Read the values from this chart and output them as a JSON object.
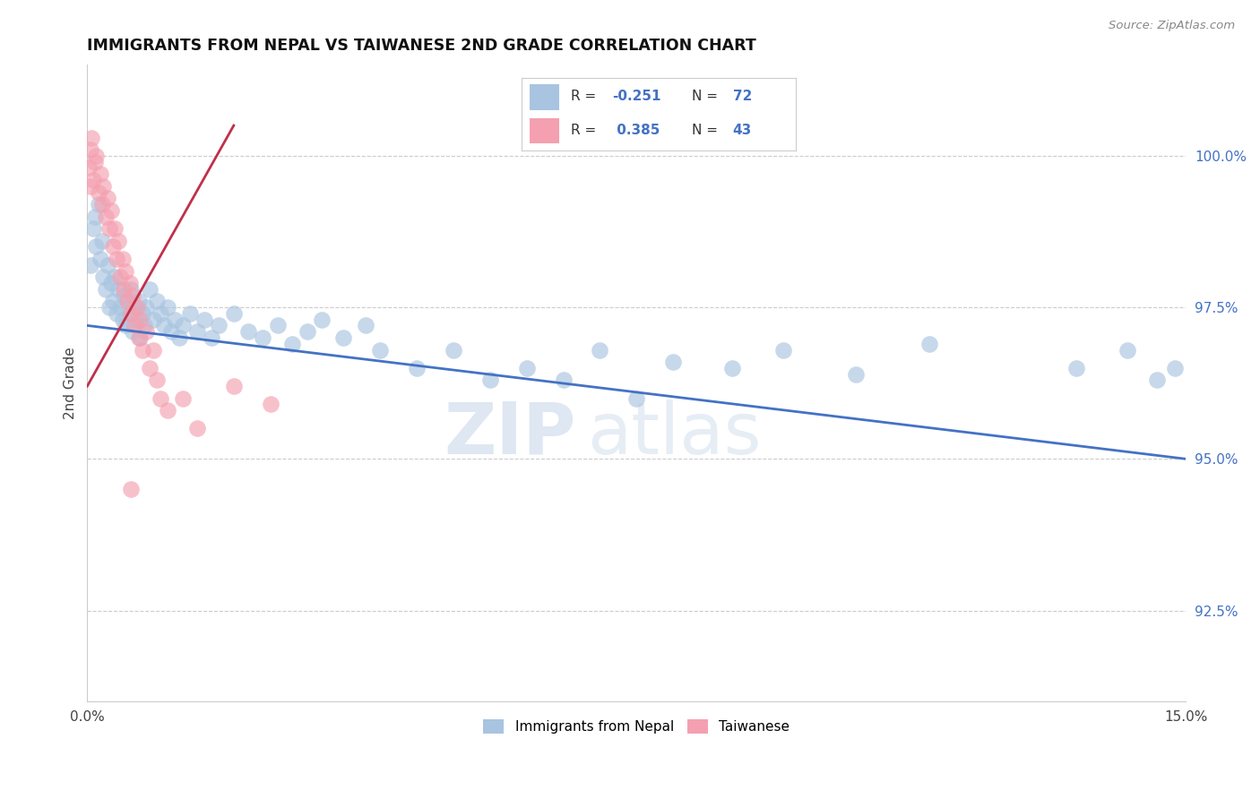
{
  "title": "IMMIGRANTS FROM NEPAL VS TAIWANESE 2ND GRADE CORRELATION CHART",
  "source_text": "Source: ZipAtlas.com",
  "ylabel": "2nd Grade",
  "xlim": [
    0.0,
    15.0
  ],
  "ylim": [
    91.0,
    101.5
  ],
  "yticks": [
    92.5,
    95.0,
    97.5,
    100.0
  ],
  "ytick_labels": [
    "92.5%",
    "95.0%",
    "97.5%",
    "100.0%"
  ],
  "xticks": [
    0.0,
    3.0,
    6.0,
    9.0,
    12.0,
    15.0
  ],
  "xtick_labels": [
    "0.0%",
    "",
    "",
    "",
    "",
    "15.0%"
  ],
  "blue_color": "#a8c4e0",
  "pink_color": "#f4a0b0",
  "blue_line_color": "#4472c4",
  "pink_line_color": "#c0304a",
  "watermark_zip": "ZIP",
  "watermark_atlas": "atlas",
  "blue_x": [
    0.05,
    0.08,
    0.1,
    0.12,
    0.15,
    0.18,
    0.2,
    0.22,
    0.25,
    0.28,
    0.3,
    0.32,
    0.35,
    0.38,
    0.4,
    0.42,
    0.45,
    0.48,
    0.5,
    0.52,
    0.55,
    0.58,
    0.6,
    0.62,
    0.65,
    0.68,
    0.7,
    0.72,
    0.75,
    0.78,
    0.8,
    0.85,
    0.9,
    0.95,
    1.0,
    1.05,
    1.1,
    1.15,
    1.2,
    1.25,
    1.3,
    1.4,
    1.5,
    1.6,
    1.7,
    1.8,
    2.0,
    2.2,
    2.4,
    2.6,
    2.8,
    3.0,
    3.2,
    3.5,
    3.8,
    4.0,
    4.5,
    5.0,
    5.5,
    6.0,
    6.5,
    7.0,
    7.5,
    8.0,
    8.8,
    9.5,
    10.5,
    11.5,
    13.5,
    14.2,
    14.6,
    14.85
  ],
  "blue_y": [
    98.2,
    98.8,
    99.0,
    98.5,
    99.2,
    98.3,
    98.6,
    98.0,
    97.8,
    98.2,
    97.5,
    97.9,
    97.6,
    98.0,
    97.4,
    97.8,
    97.5,
    97.3,
    97.7,
    97.2,
    97.6,
    97.4,
    97.8,
    97.1,
    97.5,
    97.3,
    97.6,
    97.0,
    97.4,
    97.2,
    97.5,
    97.8,
    97.3,
    97.6,
    97.4,
    97.2,
    97.5,
    97.1,
    97.3,
    97.0,
    97.2,
    97.4,
    97.1,
    97.3,
    97.0,
    97.2,
    97.4,
    97.1,
    97.0,
    97.2,
    96.9,
    97.1,
    97.3,
    97.0,
    97.2,
    96.8,
    96.5,
    96.8,
    96.3,
    96.5,
    96.3,
    96.8,
    96.0,
    96.6,
    96.5,
    96.8,
    96.4,
    96.9,
    96.5,
    96.8,
    96.3,
    96.5
  ],
  "pink_x": [
    0.02,
    0.04,
    0.06,
    0.08,
    0.1,
    0.12,
    0.15,
    0.18,
    0.2,
    0.22,
    0.25,
    0.28,
    0.3,
    0.32,
    0.35,
    0.38,
    0.4,
    0.42,
    0.45,
    0.48,
    0.5,
    0.52,
    0.55,
    0.58,
    0.6,
    0.62,
    0.65,
    0.68,
    0.7,
    0.72,
    0.75,
    0.8,
    0.85,
    0.9,
    0.95,
    1.0,
    1.1,
    1.3,
    1.5,
    2.0,
    2.5,
    0.05,
    0.6
  ],
  "pink_y": [
    99.8,
    100.1,
    100.3,
    99.6,
    99.9,
    100.0,
    99.4,
    99.7,
    99.2,
    99.5,
    99.0,
    99.3,
    98.8,
    99.1,
    98.5,
    98.8,
    98.3,
    98.6,
    98.0,
    98.3,
    97.8,
    98.1,
    97.6,
    97.9,
    97.4,
    97.7,
    97.2,
    97.5,
    97.0,
    97.3,
    96.8,
    97.1,
    96.5,
    96.8,
    96.3,
    96.0,
    95.8,
    96.0,
    95.5,
    96.2,
    95.9,
    99.5,
    94.5
  ],
  "blue_line_x": [
    0.0,
    15.0
  ],
  "blue_line_y": [
    97.2,
    95.0
  ],
  "pink_line_x": [
    0.0,
    2.0
  ],
  "pink_line_y": [
    96.2,
    100.5
  ]
}
